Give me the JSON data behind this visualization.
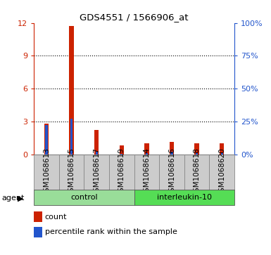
{
  "title": "GDS4551 / 1566906_at",
  "samples": [
    "GSM1068613",
    "GSM1068615",
    "GSM1068617",
    "GSM1068619",
    "GSM1068614",
    "GSM1068616",
    "GSM1068618",
    "GSM1068620"
  ],
  "counts": [
    2.8,
    11.7,
    2.2,
    0.8,
    1.0,
    1.1,
    1.0,
    1.0
  ],
  "percentiles": [
    22,
    27,
    2,
    0.5,
    1,
    2,
    1,
    1
  ],
  "count_color": "#cc2200",
  "percentile_color": "#2255cc",
  "ylim_left": [
    0,
    12
  ],
  "ylim_right": [
    0,
    100
  ],
  "yticks_left": [
    0,
    3,
    6,
    9,
    12
  ],
  "yticks_right": [
    0,
    25,
    50,
    75,
    100
  ],
  "ytick_labels_left": [
    "0",
    "3",
    "6",
    "9",
    "12"
  ],
  "ytick_labels_right": [
    "0%",
    "25%",
    "50%",
    "75%",
    "100%"
  ],
  "groups": [
    {
      "label": "control",
      "indices": [
        0,
        1,
        2,
        3
      ],
      "color": "#99dd99"
    },
    {
      "label": "interleukin-10",
      "indices": [
        4,
        5,
        6,
        7
      ],
      "color": "#55dd55"
    }
  ],
  "agent_label": "agent",
  "bar_width": 0.18,
  "bg_color": "#cccccc",
  "legend_count": "count",
  "legend_percentile": "percentile rank within the sample",
  "grid_color": "#000000",
  "spine_color": "#000000",
  "label_fontsize": 7.5,
  "tick_fontsize": 8
}
